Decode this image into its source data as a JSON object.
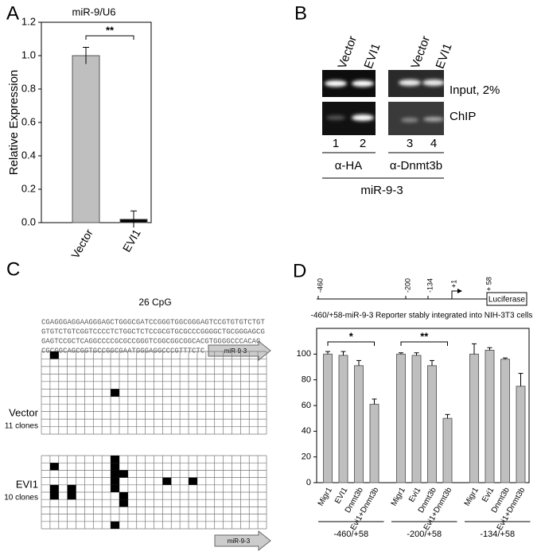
{
  "panel_labels": [
    "A",
    "B",
    "C",
    "D"
  ],
  "chart_data": [
    {
      "type": "bar",
      "title": "miR-9/U6",
      "y_label": "Relative Expression",
      "categories": [
        "Vector",
        "EVI1"
      ],
      "values": [
        1.0,
        0.02
      ],
      "errors": [
        0.05,
        0.05
      ],
      "colors": [
        "#bfbfbf",
        "#000000"
      ],
      "ylim": [
        0,
        1.2
      ],
      "yticks": [
        {
          "value": 0,
          "label": "0.0"
        },
        0.2,
        0.4,
        0.6,
        0.8,
        {
          "value": 1,
          "label": "1.0"
        },
        1.2
      ],
      "significance": [
        {
          "from": 0,
          "to": 1,
          "label": "**"
        }
      ]
    },
    {
      "type": "grouped_bar",
      "subtitle": "-460/+58-miR-9-3 Reporter stably integrated into NIH-3T3 cells",
      "color": "#bfbfbf",
      "ylim": [
        0,
        120
      ],
      "yticks": [
        0,
        20,
        40,
        60,
        80,
        100
      ],
      "groups": [
        {
          "name": "-460/+58",
          "categories": [
            "Migr1",
            "EVI1",
            "Dnmt3b",
            "Evi1+Dnmt3b"
          ],
          "values": [
            100,
            99,
            91,
            61
          ],
          "errors": [
            2,
            3,
            4,
            4
          ]
        },
        {
          "name": "-200/+58",
          "categories": [
            "Migr1",
            "Evi1",
            "Dnmt3b",
            "Evi1+Dnmt3b"
          ],
          "values": [
            100,
            99,
            91,
            50
          ],
          "errors": [
            1,
            2,
            4,
            3
          ]
        },
        {
          "name": "-134/+58",
          "categories": [
            "Migr1",
            "Evi1",
            "Dnmt3b",
            "Evi1+Dnmt3b"
          ],
          "values": [
            100,
            103,
            96,
            75
          ],
          "errors": [
            8,
            2,
            1,
            10
          ]
        }
      ],
      "significance": [
        {
          "group": 0,
          "from": 0,
          "to": 3,
          "label": "*"
        },
        {
          "group": 1,
          "from": 0,
          "to": 3,
          "label": "**"
        }
      ]
    }
  ],
  "gel": {
    "lane_headers": [
      "Vector",
      "EVI1",
      "Vector",
      "EVI1"
    ],
    "row_labels": [
      "Input, 2%",
      "ChIP"
    ],
    "lane_numbers": [
      "1",
      "2",
      "3",
      "4"
    ],
    "antibodies": [
      "α-HA",
      "α-Dnmt3b"
    ],
    "target": "miR-9-3"
  },
  "methylation": {
    "title": "26 CpG",
    "sequence": [
      "CGAGGGAGGAAGGGAGCTGGGCGATCCGGGTGGCGGGAGTCCGTGTGTCTGT",
      "GTGTCTGTCGGTCCCCTCTGGCTCTCCGCGTGCGCCCGGGGCTGCGGGAGCG",
      "GAGTCCGCTCAGGCCCCGCGCCGGGTCGGCGGCGGCACGTGGGGCCCACAG",
      "CGCGGCAGCGGTGCCGGCGAATGGGAGGCCCGTTTCTC"
    ],
    "arrow_label": "miR-9-3",
    "columns": 26,
    "samples": [
      {
        "name": "Vector",
        "clones": "11 clones",
        "rows": 11,
        "methylated": [
          [
            0,
            1
          ],
          [
            5,
            8
          ]
        ]
      },
      {
        "name": "EVI1",
        "clones": "10 clones",
        "rows": 10,
        "methylated": [
          [
            0,
            8
          ],
          [
            1,
            1
          ],
          [
            1,
            8
          ],
          [
            2,
            8
          ],
          [
            2,
            9
          ],
          [
            3,
            8
          ],
          [
            3,
            14
          ],
          [
            3,
            17
          ],
          [
            4,
            1
          ],
          [
            4,
            3
          ],
          [
            4,
            8
          ],
          [
            5,
            1
          ],
          [
            5,
            3
          ],
          [
            5,
            9
          ],
          [
            6,
            9
          ],
          [
            9,
            8
          ]
        ]
      }
    ],
    "bottom_arrow_label": "miR-9-3"
  },
  "promoter_map": {
    "positions": [
      "-460",
      "-200",
      "-134",
      "+1",
      "+ 58"
    ],
    "box_label": "Luciferase"
  }
}
